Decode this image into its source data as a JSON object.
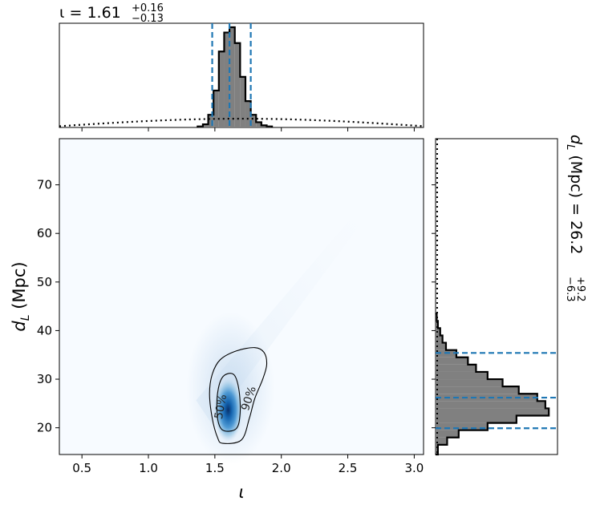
{
  "chart_data": [
    {
      "panel": "top-marginal",
      "type": "histogram",
      "title": {
        "prefix": "ι = ",
        "median": "1.61",
        "plus": "+0.16",
        "minus": "−0.13"
      },
      "xlim": [
        0.33,
        3.07
      ],
      "bins": [
        1.37,
        1.41,
        1.45,
        1.49,
        1.53,
        1.57,
        1.61,
        1.65,
        1.69,
        1.73,
        1.77,
        1.81,
        1.85,
        1.89,
        1.93
      ],
      "counts": [
        1,
        3,
        12,
        35,
        72,
        90,
        95,
        80,
        48,
        25,
        12,
        5,
        2,
        1
      ],
      "prior_line": {
        "style": "dotted",
        "level": 0.08
      },
      "quantiles": [
        1.48,
        1.61,
        1.77
      ]
    },
    {
      "panel": "joint",
      "type": "heatmap",
      "xlabel": "ι",
      "ylabel": "d_L (Mpc)",
      "xlim": [
        0.33,
        3.07
      ],
      "ylim": [
        14.5,
        79.5
      ],
      "xticks": [
        "0.5",
        "1.0",
        "1.5",
        "2.0",
        "2.5",
        "3.0"
      ],
      "xtick_values": [
        0.5,
        1.0,
        1.5,
        2.0,
        2.5,
        3.0
      ],
      "yticks": [
        "20",
        "30",
        "40",
        "50",
        "60",
        "70"
      ],
      "ytick_values": [
        20,
        30,
        40,
        50,
        60,
        70
      ],
      "peak": {
        "x": 1.6,
        "y": 24
      },
      "contours": [
        {
          "label": "50%",
          "points": [
            [
              1.56,
              19.5
            ],
            [
              1.66,
              19.8
            ],
            [
              1.69,
              23
            ],
            [
              1.68,
              28
            ],
            [
              1.64,
              31
            ],
            [
              1.56,
              30.5
            ],
            [
              1.52,
              27
            ],
            [
              1.52,
              22
            ],
            [
              1.56,
              19.5
            ]
          ]
        },
        {
          "label": "90%",
          "points": [
            [
              1.56,
              16.8
            ],
            [
              1.7,
              17.5
            ],
            [
              1.76,
              22
            ],
            [
              1.8,
              26
            ],
            [
              1.86,
              30
            ],
            [
              1.89,
              33
            ],
            [
              1.87,
              35.5
            ],
            [
              1.8,
              36.5
            ],
            [
              1.66,
              35.8
            ],
            [
              1.54,
              34
            ],
            [
              1.48,
              31
            ],
            [
              1.46,
              27
            ],
            [
              1.48,
              22
            ],
            [
              1.52,
              18
            ],
            [
              1.56,
              16.8
            ]
          ]
        }
      ]
    },
    {
      "panel": "right-marginal",
      "type": "histogram",
      "orientation": "horizontal",
      "ylabel_title": {
        "prefix": "d",
        "sub": "L",
        "mid": " (Mpc) = ",
        "median": "26.2",
        "plus": "+9.2",
        "minus": "−6.3"
      },
      "ylim": [
        14.5,
        79.5
      ],
      "bins": [
        14.5,
        16.5,
        18,
        19.5,
        21,
        22.5,
        24,
        25.5,
        27,
        28.5,
        30,
        31.5,
        33,
        34.5,
        36,
        37.5,
        39,
        40.5,
        42,
        43.5
      ],
      "counts": [
        2,
        10,
        20,
        45,
        70,
        98,
        95,
        88,
        72,
        58,
        45,
        35,
        28,
        18,
        9,
        6,
        4,
        2,
        1
      ],
      "quantiles": [
        19.9,
        26.2,
        35.4
      ]
    }
  ]
}
